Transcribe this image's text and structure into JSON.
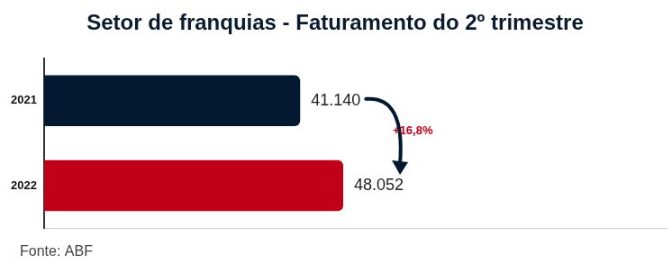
{
  "chart_data": {
    "type": "bar",
    "title": "Setor de franquias - Faturamento do 2º trimestre",
    "orientation": "horizontal",
    "categories": [
      "2021",
      "2022"
    ],
    "values": [
      41140,
      48052
    ],
    "value_labels": [
      "41.140",
      "48.052"
    ],
    "data_labels": true,
    "colors": [
      "#021930",
      "#c00018"
    ],
    "xlim": [
      0,
      100000
    ],
    "tick_labels": "y",
    "grid": false,
    "annotation": "+16,8%",
    "source": "Fonte: ABF"
  }
}
